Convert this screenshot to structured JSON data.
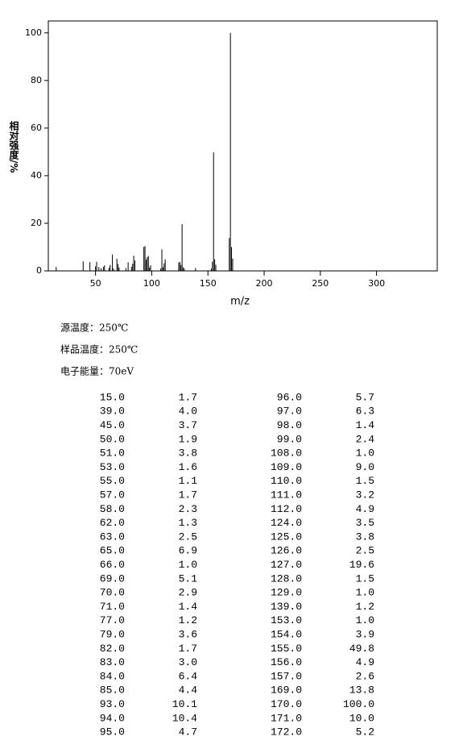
{
  "chart_data": {
    "type": "spectrum",
    "xlabel": "m/z",
    "ylabel": "相对强度/%",
    "color": "#000000",
    "x": [
      15,
      39,
      45,
      50,
      51,
      53,
      55,
      57,
      58,
      62,
      63,
      65,
      66,
      69,
      70,
      71,
      77,
      79,
      82,
      83,
      84,
      85,
      93,
      94,
      95,
      96,
      97,
      98,
      99,
      108,
      109,
      110,
      111,
      112,
      124,
      125,
      126,
      127,
      128,
      129,
      139,
      153,
      154,
      155,
      156,
      157,
      169,
      170,
      171,
      172
    ],
    "values": [
      1.7,
      4.0,
      3.7,
      1.9,
      3.8,
      1.6,
      1.1,
      1.7,
      2.3,
      1.3,
      2.5,
      6.9,
      1.0,
      5.1,
      2.9,
      1.4,
      1.2,
      3.6,
      1.7,
      3.0,
      6.4,
      4.4,
      10.1,
      10.4,
      4.7,
      5.7,
      6.3,
      1.4,
      2.4,
      1.0,
      9.0,
      1.5,
      3.2,
      4.9,
      3.5,
      3.8,
      2.5,
      19.6,
      1.5,
      1.0,
      1.2,
      1.0,
      3.9,
      49.8,
      4.9,
      2.6,
      13.8,
      100.0,
      10.0,
      5.2
    ],
    "xlim": [
      8,
      354
    ],
    "ylim": [
      0,
      105
    ],
    "xticks": [
      50,
      100,
      150,
      200,
      250,
      300
    ],
    "yticks": [
      0,
      20,
      40,
      60,
      80,
      100
    ]
  },
  "conditions": [
    "源温度：250℃",
    "样品温度：250℃",
    "电子能量：70eV"
  ],
  "table": {
    "rows": [
      [
        "15.0",
        "1.7",
        "96.0",
        "5.7"
      ],
      [
        "39.0",
        "4.0",
        "97.0",
        "6.3"
      ],
      [
        "45.0",
        "3.7",
        "98.0",
        "1.4"
      ],
      [
        "50.0",
        "1.9",
        "99.0",
        "2.4"
      ],
      [
        "51.0",
        "3.8",
        "108.0",
        "1.0"
      ],
      [
        "53.0",
        "1.6",
        "109.0",
        "9.0"
      ],
      [
        "55.0",
        "1.1",
        "110.0",
        "1.5"
      ],
      [
        "57.0",
        "1.7",
        "111.0",
        "3.2"
      ],
      [
        "58.0",
        "2.3",
        "112.0",
        "4.9"
      ],
      [
        "62.0",
        "1.3",
        "124.0",
        "3.5"
      ],
      [
        "63.0",
        "2.5",
        "125.0",
        "3.8"
      ],
      [
        "65.0",
        "6.9",
        "126.0",
        "2.5"
      ],
      [
        "66.0",
        "1.0",
        "127.0",
        "19.6"
      ],
      [
        "69.0",
        "5.1",
        "128.0",
        "1.5"
      ],
      [
        "70.0",
        "2.9",
        "129.0",
        "1.0"
      ],
      [
        "71.0",
        "1.4",
        "139.0",
        "1.2"
      ],
      [
        "77.0",
        "1.2",
        "153.0",
        "1.0"
      ],
      [
        "79.0",
        "3.6",
        "154.0",
        "3.9"
      ],
      [
        "82.0",
        "1.7",
        "155.0",
        "49.8"
      ],
      [
        "83.0",
        "3.0",
        "156.0",
        "4.9"
      ],
      [
        "84.0",
        "6.4",
        "157.0",
        "2.6"
      ],
      [
        "85.0",
        "4.4",
        "169.0",
        "13.8"
      ],
      [
        "93.0",
        "10.1",
        "170.0",
        "100.0"
      ],
      [
        "94.0",
        "10.4",
        "171.0",
        "10.0"
      ],
      [
        "95.0",
        "4.7",
        "172.0",
        "5.2"
      ]
    ]
  }
}
